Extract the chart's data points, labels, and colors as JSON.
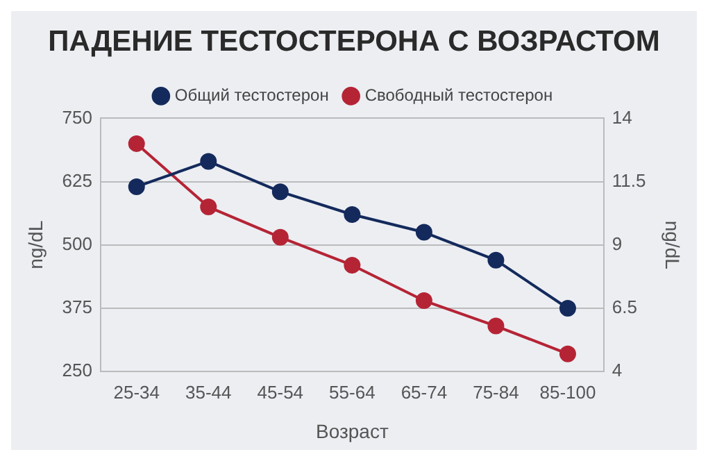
{
  "chart_data": {
    "type": "line",
    "title": "ПАДЕНИЕ ТЕСТОСТЕРОНА С ВОЗРАСТОМ",
    "xlabel": "Возраст",
    "ylabel": "ng/dL",
    "y2label": "ng/dL",
    "categories": [
      "25-34",
      "35-44",
      "45-54",
      "55-64",
      "65-74",
      "75-84",
      "85-100"
    ],
    "series": [
      {
        "name": "Общий тестостерон",
        "color": "#142a5c",
        "values": [
          615,
          665,
          605,
          560,
          525,
          470,
          375
        ]
      },
      {
        "name": "Свободный тестостерон",
        "color": "#b52435",
        "axis": "y2",
        "values": [
          13,
          10.5,
          9.3,
          8.2,
          6.8,
          5.8,
          4.7
        ]
      }
    ],
    "ylim": [
      250,
      750
    ],
    "yticks": [
      250,
      375,
      500,
      625,
      750
    ],
    "y2lim": [
      4,
      14
    ],
    "y2ticks": [
      4,
      6.5,
      9,
      11.5,
      14
    ],
    "grid": "y",
    "legend": "top",
    "marker": "circle",
    "line_style": "solid"
  }
}
